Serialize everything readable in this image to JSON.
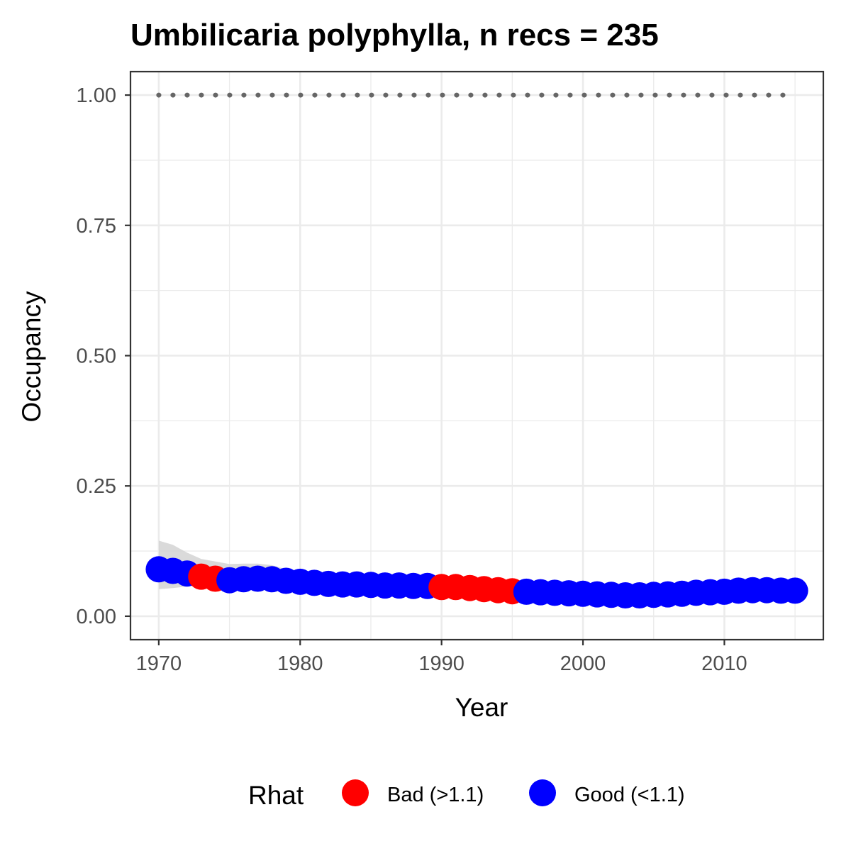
{
  "chart_data": {
    "type": "scatter",
    "title": "Umbilicaria polyphylla, n recs = 235",
    "xlabel": "Year",
    "ylabel": "Occupancy",
    "xlim": [
      1968,
      2017
    ],
    "ylim": [
      -0.045,
      1.045
    ],
    "x_ticks": [
      1970,
      1980,
      1990,
      2000,
      2010
    ],
    "x_tick_labels": [
      "1970",
      "1980",
      "1990",
      "2000",
      "2010"
    ],
    "y_ticks": [
      0,
      0.25,
      0.5,
      0.75,
      1.0
    ],
    "y_tick_labels": [
      "0.00",
      "0.25",
      "0.50",
      "0.75",
      "1.00"
    ],
    "grid": true,
    "legend": {
      "title": "Rhat",
      "position": "bottom",
      "entries": [
        {
          "label": "Bad (>1.1)",
          "color": "#ff0000"
        },
        {
          "label": "Good (<1.1)",
          "color": "#0000ff"
        }
      ]
    },
    "colors": {
      "bad": "#ff0000",
      "good": "#0000ff",
      "ribbon": "#d3d3d3",
      "reference": "#666666"
    },
    "reference_line": {
      "y": 1.0,
      "x_start": 1970,
      "x_end": 2015,
      "style": "dotted"
    },
    "series": [
      {
        "name": "Occupancy",
        "x": [
          1970,
          1971,
          1972,
          1973,
          1974,
          1975,
          1976,
          1977,
          1978,
          1979,
          1980,
          1981,
          1982,
          1983,
          1984,
          1985,
          1986,
          1987,
          1988,
          1989,
          1990,
          1991,
          1992,
          1993,
          1994,
          1995,
          1996,
          1997,
          1998,
          1999,
          2000,
          2001,
          2002,
          2003,
          2004,
          2005,
          2006,
          2007,
          2008,
          2009,
          2010,
          2011,
          2012,
          2013,
          2014,
          2015
        ],
        "y": [
          0.09,
          0.087,
          0.082,
          0.076,
          0.072,
          0.069,
          0.071,
          0.072,
          0.071,
          0.068,
          0.066,
          0.064,
          0.062,
          0.061,
          0.061,
          0.06,
          0.059,
          0.059,
          0.058,
          0.058,
          0.056,
          0.056,
          0.054,
          0.052,
          0.05,
          0.048,
          0.047,
          0.046,
          0.045,
          0.044,
          0.043,
          0.042,
          0.041,
          0.04,
          0.04,
          0.041,
          0.042,
          0.043,
          0.045,
          0.046,
          0.047,
          0.049,
          0.05,
          0.05,
          0.049,
          0.049
        ],
        "rhat": [
          "good",
          "good",
          "good",
          "bad",
          "bad",
          "good",
          "good",
          "good",
          "good",
          "good",
          "good",
          "good",
          "good",
          "good",
          "good",
          "good",
          "good",
          "good",
          "good",
          "good",
          "bad",
          "bad",
          "bad",
          "bad",
          "bad",
          "bad",
          "good",
          "good",
          "good",
          "good",
          "good",
          "good",
          "good",
          "good",
          "good",
          "good",
          "good",
          "good",
          "good",
          "good",
          "good",
          "good",
          "good",
          "good",
          "good",
          "good"
        ]
      }
    ],
    "ribbon": {
      "x": [
        1970,
        1971,
        1972,
        1973,
        1974,
        1975,
        1976,
        1977,
        1978,
        1979,
        1980,
        1981,
        1982,
        1983,
        1984,
        1985,
        1986,
        1987,
        1988,
        1989,
        1990,
        1991,
        1992,
        1993,
        1994,
        1995,
        1996,
        1997,
        1998,
        1999,
        2000,
        2001,
        2002,
        2003,
        2004,
        2005,
        2006,
        2007,
        2008,
        2009,
        2010,
        2011,
        2012,
        2013,
        2014,
        2015
      ],
      "lower": [
        0.052,
        0.054,
        0.057,
        0.06,
        0.062,
        0.063,
        0.064,
        0.064,
        0.063,
        0.061,
        0.06,
        0.058,
        0.057,
        0.056,
        0.056,
        0.055,
        0.055,
        0.055,
        0.054,
        0.054,
        0.052,
        0.052,
        0.05,
        0.048,
        0.046,
        0.044,
        0.043,
        0.042,
        0.041,
        0.04,
        0.039,
        0.038,
        0.037,
        0.036,
        0.036,
        0.037,
        0.038,
        0.039,
        0.041,
        0.042,
        0.043,
        0.045,
        0.046,
        0.046,
        0.045,
        0.045
      ],
      "upper": [
        0.145,
        0.137,
        0.122,
        0.11,
        0.105,
        0.1,
        0.101,
        0.101,
        0.098,
        0.09,
        0.082,
        0.075,
        0.07,
        0.068,
        0.066,
        0.065,
        0.064,
        0.063,
        0.062,
        0.062,
        0.06,
        0.06,
        0.058,
        0.056,
        0.054,
        0.052,
        0.051,
        0.05,
        0.049,
        0.048,
        0.047,
        0.046,
        0.045,
        0.044,
        0.044,
        0.045,
        0.046,
        0.047,
        0.049,
        0.05,
        0.051,
        0.053,
        0.054,
        0.054,
        0.053,
        0.053
      ]
    }
  }
}
